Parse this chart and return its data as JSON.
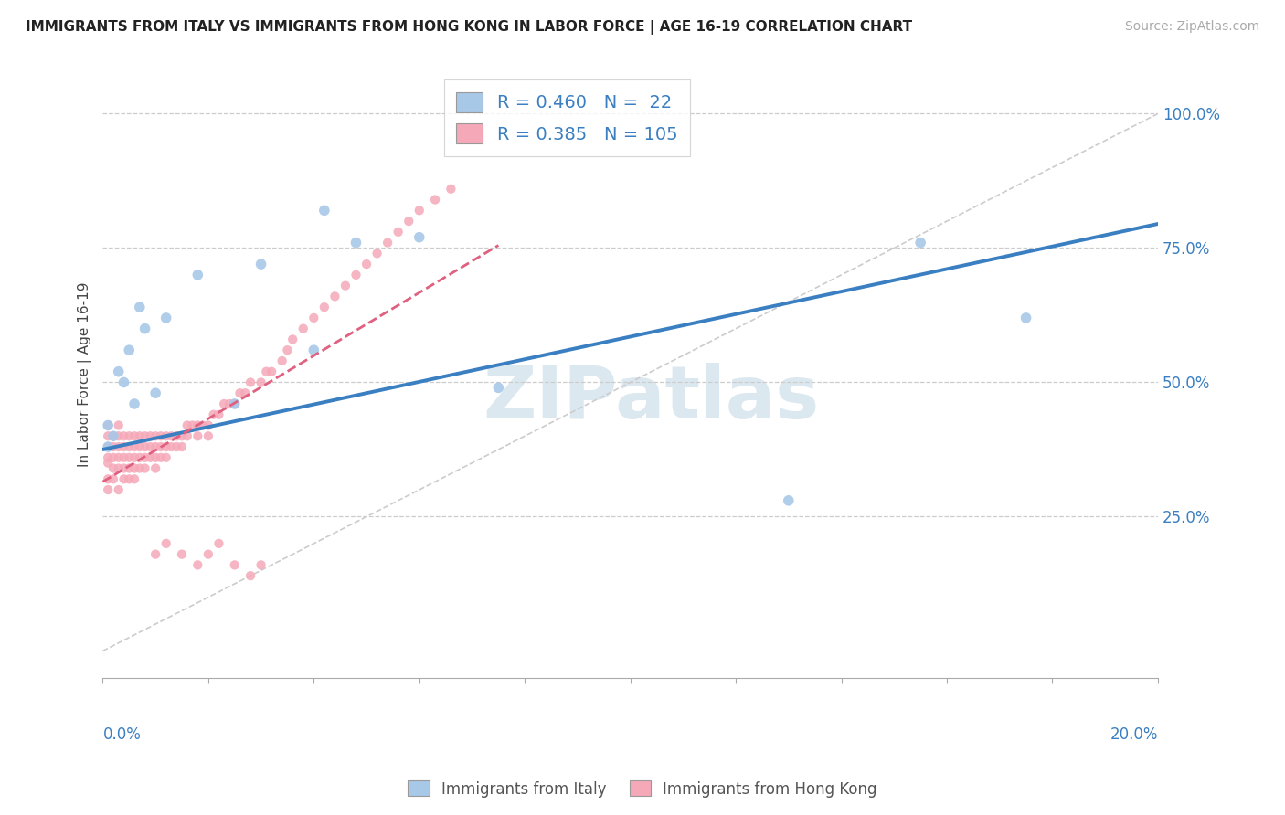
{
  "title": "IMMIGRANTS FROM ITALY VS IMMIGRANTS FROM HONG KONG IN LABOR FORCE | AGE 16-19 CORRELATION CHART",
  "source": "Source: ZipAtlas.com",
  "ylabel": "In Labor Force | Age 16-19",
  "ytick_labels": [
    "25.0%",
    "50.0%",
    "75.0%",
    "100.0%"
  ],
  "ytick_vals": [
    0.25,
    0.5,
    0.75,
    1.0
  ],
  "xlim": [
    0,
    0.2
  ],
  "ylim": [
    -0.05,
    1.08
  ],
  "legend_R_italy": "0.460",
  "legend_N_italy": "22",
  "legend_R_hk": "0.385",
  "legend_N_hk": "105",
  "italy_color": "#a8c8e8",
  "hk_color": "#f5a8b8",
  "italy_line_color": "#3a7fc1",
  "hk_line_color": "#e06080",
  "italy_line_x0": 0.0,
  "italy_line_y0": 0.375,
  "italy_line_x1": 0.2,
  "italy_line_y1": 0.795,
  "hk_line_x0": 0.0,
  "hk_line_y0": 0.315,
  "hk_line_x1": 0.075,
  "hk_line_y1": 0.755,
  "scatter_italy_x": [
    0.001,
    0.001,
    0.002,
    0.003,
    0.004,
    0.005,
    0.006,
    0.007,
    0.008,
    0.01,
    0.012,
    0.018,
    0.025,
    0.03,
    0.04,
    0.042,
    0.048,
    0.06,
    0.075,
    0.13,
    0.155,
    0.175
  ],
  "scatter_italy_y": [
    0.38,
    0.42,
    0.4,
    0.52,
    0.5,
    0.56,
    0.46,
    0.64,
    0.6,
    0.48,
    0.62,
    0.7,
    0.46,
    0.72,
    0.56,
    0.82,
    0.76,
    0.77,
    0.49,
    0.28,
    0.76,
    0.62
  ],
  "scatter_hk_x": [
    0.001,
    0.001,
    0.001,
    0.001,
    0.001,
    0.001,
    0.001,
    0.002,
    0.002,
    0.002,
    0.002,
    0.002,
    0.003,
    0.003,
    0.003,
    0.003,
    0.003,
    0.003,
    0.004,
    0.004,
    0.004,
    0.004,
    0.004,
    0.005,
    0.005,
    0.005,
    0.005,
    0.005,
    0.006,
    0.006,
    0.006,
    0.006,
    0.006,
    0.007,
    0.007,
    0.007,
    0.007,
    0.008,
    0.008,
    0.008,
    0.008,
    0.009,
    0.009,
    0.009,
    0.01,
    0.01,
    0.01,
    0.01,
    0.011,
    0.011,
    0.011,
    0.012,
    0.012,
    0.012,
    0.013,
    0.013,
    0.014,
    0.014,
    0.015,
    0.015,
    0.016,
    0.016,
    0.017,
    0.018,
    0.018,
    0.019,
    0.02,
    0.02,
    0.021,
    0.022,
    0.023,
    0.024,
    0.025,
    0.026,
    0.027,
    0.028,
    0.03,
    0.031,
    0.032,
    0.034,
    0.035,
    0.036,
    0.038,
    0.04,
    0.042,
    0.044,
    0.046,
    0.048,
    0.05,
    0.052,
    0.054,
    0.056,
    0.058,
    0.06,
    0.063,
    0.066,
    0.01,
    0.012,
    0.015,
    0.018,
    0.02,
    0.022,
    0.025,
    0.028,
    0.03
  ],
  "scatter_hk_y": [
    0.38,
    0.4,
    0.35,
    0.42,
    0.3,
    0.36,
    0.32,
    0.4,
    0.36,
    0.32,
    0.38,
    0.34,
    0.36,
    0.4,
    0.34,
    0.38,
    0.3,
    0.42,
    0.36,
    0.38,
    0.34,
    0.4,
    0.32,
    0.38,
    0.34,
    0.4,
    0.36,
    0.32,
    0.38,
    0.4,
    0.36,
    0.34,
    0.32,
    0.4,
    0.38,
    0.36,
    0.34,
    0.38,
    0.36,
    0.34,
    0.4,
    0.38,
    0.36,
    0.4,
    0.38,
    0.4,
    0.36,
    0.34,
    0.38,
    0.4,
    0.36,
    0.38,
    0.4,
    0.36,
    0.4,
    0.38,
    0.4,
    0.38,
    0.4,
    0.38,
    0.42,
    0.4,
    0.42,
    0.42,
    0.4,
    0.42,
    0.42,
    0.4,
    0.44,
    0.44,
    0.46,
    0.46,
    0.46,
    0.48,
    0.48,
    0.5,
    0.5,
    0.52,
    0.52,
    0.54,
    0.56,
    0.58,
    0.6,
    0.62,
    0.64,
    0.66,
    0.68,
    0.7,
    0.72,
    0.74,
    0.76,
    0.78,
    0.8,
    0.82,
    0.84,
    0.86,
    0.18,
    0.2,
    0.18,
    0.16,
    0.18,
    0.2,
    0.16,
    0.14,
    0.16
  ]
}
